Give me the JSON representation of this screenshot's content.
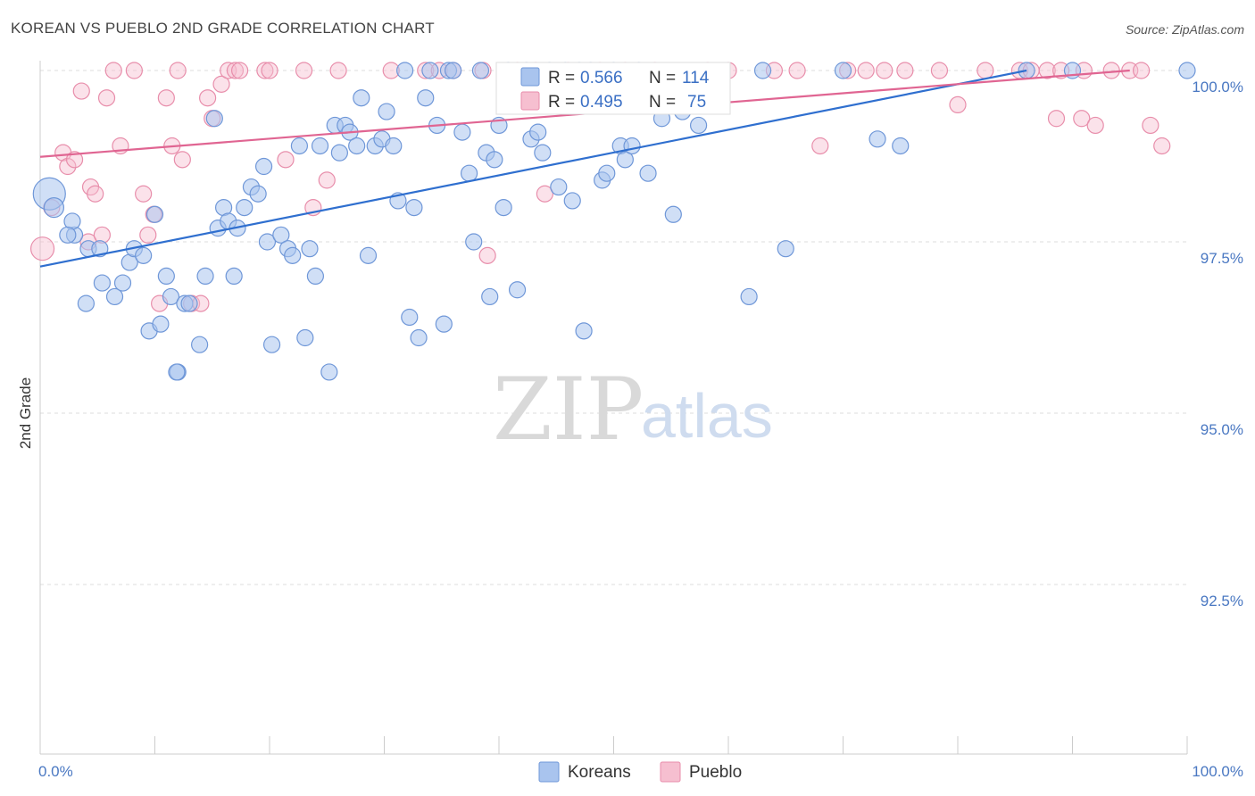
{
  "header": {
    "title": "KOREAN VS PUEBLO 2ND GRADE CORRELATION CHART",
    "source": "Source: ZipAtlas.com"
  },
  "watermark": {
    "zip": "ZIP",
    "atlas": "atlas"
  },
  "legend": {
    "koreans": {
      "r_label": "R =",
      "r_value": "0.566",
      "n_label": "N =",
      "n_value": "114"
    },
    "pueblo": {
      "r_label": "R =",
      "r_value": "0.495",
      "n_label": "N =",
      "n_value": "75"
    }
  },
  "bottom_legend": {
    "koreans": "Koreans",
    "pueblo": "Pueblo"
  },
  "colors": {
    "koreans_fill": "#a9c4ee",
    "koreans_stroke": "#6f97d8",
    "koreans_line": "#2f6fcf",
    "pueblo_fill": "#f6bfd0",
    "pueblo_stroke": "#e88eab",
    "pueblo_line": "#e06592",
    "grid": "#dddddd",
    "tick_label": "#4a78c2"
  },
  "chart_data": {
    "type": "scatter",
    "title": "KOREAN VS PUEBLO 2ND GRADE CORRELATION CHART",
    "xlabel": "",
    "ylabel": "2nd Grade",
    "xlim": [
      0,
      100
    ],
    "ylim": [
      90.3,
      100.4
    ],
    "x_tick_labels": [
      {
        "value": 0,
        "label": "0.0%"
      },
      {
        "value": 100,
        "label": "100.0%"
      }
    ],
    "y_tick_labels": [
      {
        "value": 100,
        "label": "100.0%"
      },
      {
        "value": 97.5,
        "label": "97.5%"
      },
      {
        "value": 95,
        "label": "95.0%"
      },
      {
        "value": 92.5,
        "label": "92.5%"
      }
    ],
    "series": [
      {
        "name": "Koreans",
        "trend": {
          "x": [
            0,
            86
          ],
          "y": [
            97.14,
            100.0
          ]
        },
        "points": [
          [
            0.8,
            98.2,
            18
          ],
          [
            1.2,
            98.0,
            11
          ],
          [
            3.0,
            97.6,
            9
          ],
          [
            2.8,
            97.8,
            9
          ],
          [
            2.4,
            97.6,
            9
          ],
          [
            4.2,
            97.4,
            9
          ],
          [
            5.2,
            97.4,
            9
          ],
          [
            4.0,
            96.6,
            9
          ],
          [
            5.4,
            96.9,
            9
          ],
          [
            6.5,
            96.7,
            9
          ],
          [
            7.8,
            97.2,
            9
          ],
          [
            8.2,
            97.4,
            9
          ],
          [
            7.2,
            96.9,
            9
          ],
          [
            9.0,
            97.3,
            9
          ],
          [
            10.0,
            97.9,
            9
          ],
          [
            11.0,
            97.0,
            9
          ],
          [
            11.4,
            96.7,
            9
          ],
          [
            9.5,
            96.2,
            9
          ],
          [
            10.5,
            96.3,
            9
          ],
          [
            12.6,
            96.6,
            9
          ],
          [
            13.0,
            96.6,
            9
          ],
          [
            12.0,
            95.6,
            9
          ],
          [
            11.9,
            95.6,
            9
          ],
          [
            13.9,
            96.0,
            9
          ],
          [
            14.4,
            97.0,
            9
          ],
          [
            15.2,
            99.3,
            9
          ],
          [
            15.5,
            97.7,
            9
          ],
          [
            16.0,
            98.0,
            9
          ],
          [
            16.4,
            97.8,
            9
          ],
          [
            17.2,
            97.7,
            9
          ],
          [
            17.8,
            98.0,
            9
          ],
          [
            16.9,
            97.0,
            9
          ],
          [
            18.4,
            98.3,
            9
          ],
          [
            19.0,
            98.2,
            9
          ],
          [
            19.5,
            98.6,
            9
          ],
          [
            19.8,
            97.5,
            9
          ],
          [
            20.2,
            96.0,
            9
          ],
          [
            21.0,
            97.6,
            9
          ],
          [
            21.6,
            97.4,
            9
          ],
          [
            22.0,
            97.3,
            9
          ],
          [
            22.6,
            98.9,
            9
          ],
          [
            23.1,
            96.1,
            9
          ],
          [
            23.5,
            97.4,
            9
          ],
          [
            24.0,
            97.0,
            9
          ],
          [
            24.4,
            98.9,
            9
          ],
          [
            25.2,
            95.6,
            9
          ],
          [
            25.7,
            99.2,
            9
          ],
          [
            26.1,
            98.8,
            9
          ],
          [
            26.6,
            99.2,
            9
          ],
          [
            27.0,
            99.1,
            9
          ],
          [
            27.6,
            98.9,
            9
          ],
          [
            28.0,
            99.6,
            9
          ],
          [
            28.6,
            97.3,
            9
          ],
          [
            29.2,
            98.9,
            9
          ],
          [
            29.8,
            99.0,
            9
          ],
          [
            30.2,
            99.4,
            9
          ],
          [
            30.8,
            98.9,
            9
          ],
          [
            31.2,
            98.1,
            9
          ],
          [
            31.8,
            100.0,
            9
          ],
          [
            32.2,
            96.4,
            9
          ],
          [
            32.6,
            98.0,
            9
          ],
          [
            33.0,
            96.1,
            9
          ],
          [
            33.6,
            99.6,
            9
          ],
          [
            34.0,
            100.0,
            9
          ],
          [
            34.6,
            99.2,
            9
          ],
          [
            35.2,
            96.3,
            9
          ],
          [
            35.6,
            100.0,
            9
          ],
          [
            36.0,
            100.0,
            9
          ],
          [
            36.8,
            99.1,
            9
          ],
          [
            37.4,
            98.5,
            9
          ],
          [
            37.8,
            97.5,
            9
          ],
          [
            38.4,
            100.0,
            9
          ],
          [
            38.9,
            98.8,
            9
          ],
          [
            39.2,
            96.7,
            9
          ],
          [
            39.6,
            98.7,
            9
          ],
          [
            40.0,
            99.2,
            9
          ],
          [
            40.4,
            98.0,
            9
          ],
          [
            40.8,
            100.0,
            9
          ],
          [
            41.6,
            96.8,
            9
          ],
          [
            42.4,
            100.0,
            9
          ],
          [
            42.8,
            99.0,
            9
          ],
          [
            43.4,
            99.1,
            9
          ],
          [
            43.8,
            98.8,
            9
          ],
          [
            44.4,
            100.0,
            9
          ],
          [
            45.2,
            98.3,
            9
          ],
          [
            45.8,
            100.0,
            9
          ],
          [
            46.4,
            98.1,
            9
          ],
          [
            47.0,
            100.0,
            9
          ],
          [
            47.4,
            96.2,
            9
          ],
          [
            48.0,
            100.0,
            9
          ],
          [
            49.0,
            98.4,
            9
          ],
          [
            49.4,
            98.5,
            9
          ],
          [
            50.0,
            100.0,
            9
          ],
          [
            50.6,
            98.9,
            9
          ],
          [
            51.0,
            98.7,
            9
          ],
          [
            51.6,
            98.9,
            9
          ],
          [
            52.2,
            100.0,
            9
          ],
          [
            53.0,
            98.5,
            9
          ],
          [
            53.6,
            99.6,
            9
          ],
          [
            54.2,
            99.3,
            9
          ],
          [
            55.2,
            97.9,
            9
          ],
          [
            56.0,
            99.4,
            9
          ],
          [
            57.4,
            99.2,
            9
          ],
          [
            58.4,
            99.6,
            9
          ],
          [
            59.0,
            99.6,
            9
          ],
          [
            61.8,
            96.7,
            9
          ],
          [
            65.0,
            97.4,
            9
          ],
          [
            73.0,
            99.0,
            9
          ],
          [
            75.0,
            98.9,
            9
          ],
          [
            86.0,
            100.0,
            9
          ],
          [
            90.0,
            100.0,
            9
          ],
          [
            100.0,
            100.0,
            9
          ],
          [
            70.0,
            100.0,
            9
          ],
          [
            63.0,
            100.0,
            9
          ]
        ]
      },
      {
        "name": "Pueblo",
        "trend": {
          "x": [
            0,
            95
          ],
          "y": [
            98.74,
            100.0
          ]
        },
        "points": [
          [
            0.2,
            97.4,
            13
          ],
          [
            1.0,
            98.0,
            9
          ],
          [
            2.0,
            98.8,
            9
          ],
          [
            2.4,
            98.6,
            9
          ],
          [
            3.0,
            98.7,
            9
          ],
          [
            3.6,
            99.7,
            9
          ],
          [
            4.2,
            97.5,
            9
          ],
          [
            4.4,
            98.3,
            9
          ],
          [
            4.8,
            98.2,
            9
          ],
          [
            5.4,
            97.6,
            9
          ],
          [
            5.8,
            99.6,
            9
          ],
          [
            6.4,
            100.0,
            9
          ],
          [
            7.0,
            98.9,
            9
          ],
          [
            8.2,
            100.0,
            9
          ],
          [
            9.0,
            98.2,
            9
          ],
          [
            9.4,
            97.6,
            9
          ],
          [
            9.9,
            97.9,
            9
          ],
          [
            10.4,
            96.6,
            9
          ],
          [
            11.0,
            99.6,
            9
          ],
          [
            11.5,
            98.9,
            9
          ],
          [
            12.0,
            100.0,
            9
          ],
          [
            12.4,
            98.7,
            9
          ],
          [
            13.2,
            96.6,
            9
          ],
          [
            14.0,
            96.6,
            9
          ],
          [
            14.6,
            99.6,
            9
          ],
          [
            15.0,
            99.3,
            9
          ],
          [
            15.8,
            99.8,
            9
          ],
          [
            16.4,
            100.0,
            9
          ],
          [
            17.0,
            100.0,
            9
          ],
          [
            17.4,
            100.0,
            9
          ],
          [
            19.6,
            100.0,
            9
          ],
          [
            20.0,
            100.0,
            9
          ],
          [
            21.4,
            98.7,
            9
          ],
          [
            23.0,
            100.0,
            9
          ],
          [
            23.8,
            98.0,
            9
          ],
          [
            25.0,
            98.4,
            9
          ],
          [
            26.0,
            100.0,
            9
          ],
          [
            30.6,
            100.0,
            9
          ],
          [
            33.6,
            100.0,
            9
          ],
          [
            34.8,
            100.0,
            9
          ],
          [
            36.0,
            100.0,
            9
          ],
          [
            38.6,
            100.0,
            9
          ],
          [
            39.0,
            97.3,
            9
          ],
          [
            41.6,
            100.0,
            9
          ],
          [
            43.2,
            100.0,
            9
          ],
          [
            44.0,
            98.2,
            9
          ],
          [
            46.0,
            100.0,
            9
          ],
          [
            48.8,
            100.0,
            9
          ],
          [
            51.0,
            100.0,
            9
          ],
          [
            53.6,
            100.0,
            9
          ],
          [
            58.2,
            100.0,
            9
          ],
          [
            60.0,
            100.0,
            9
          ],
          [
            64.0,
            100.0,
            9
          ],
          [
            66.0,
            100.0,
            9
          ],
          [
            68.0,
            98.9,
            9
          ],
          [
            70.4,
            100.0,
            9
          ],
          [
            72.0,
            100.0,
            9
          ],
          [
            73.6,
            100.0,
            9
          ],
          [
            75.4,
            100.0,
            9
          ],
          [
            78.4,
            100.0,
            9
          ],
          [
            80.0,
            99.5,
            9
          ],
          [
            82.4,
            100.0,
            9
          ],
          [
            85.4,
            100.0,
            9
          ],
          [
            86.4,
            100.0,
            9
          ],
          [
            87.8,
            100.0,
            9
          ],
          [
            88.6,
            99.3,
            9
          ],
          [
            89.0,
            100.0,
            9
          ],
          [
            90.8,
            99.3,
            9
          ],
          [
            92.0,
            99.2,
            9
          ],
          [
            93.4,
            100.0,
            9
          ],
          [
            95.0,
            100.0,
            9
          ],
          [
            96.0,
            100.0,
            9
          ],
          [
            96.8,
            99.2,
            9
          ],
          [
            97.8,
            98.9,
            9
          ],
          [
            91.0,
            100.0,
            9
          ]
        ]
      }
    ],
    "grid": true,
    "legend_position": "top-center"
  }
}
